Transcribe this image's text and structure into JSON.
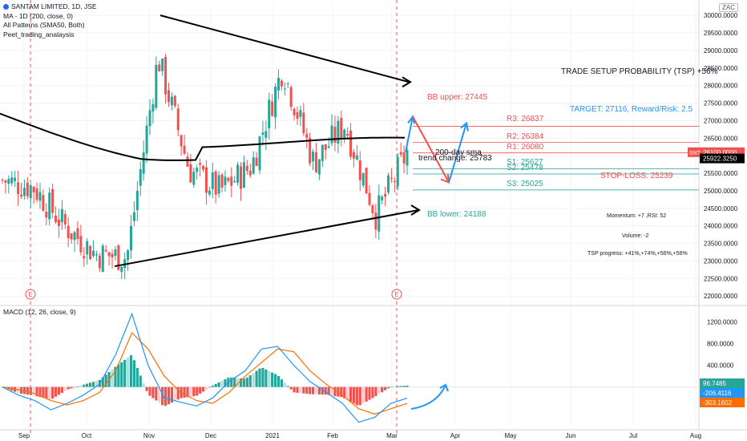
{
  "header": {
    "symbol_line": "SANTAM LIMITED, 1D, JSE",
    "ma_line": "MA - 1D (200, close, 0)",
    "patterns_line": "All Patterns (SMA50, Both)",
    "script_line": "Peet_trading_analaysis",
    "currency": "ZAC"
  },
  "macd_legend": "MACD (12, 26, close, 9)",
  "price_axis": {
    "labels": [
      "30000.0000",
      "29500.0000",
      "29000.0000",
      "28500.0000",
      "28000.0000",
      "27500.0000",
      "27000.0000",
      "26500.0000",
      "26000.0000",
      "25500.0000",
      "25000.0000",
      "24500.0000",
      "24000.0000",
      "23500.0000",
      "23000.0000",
      "22500.0000",
      "22000.0000"
    ],
    "values": [
      30000,
      29500,
      29000,
      28500,
      28000,
      27500,
      27000,
      26500,
      26000,
      25500,
      25000,
      24500,
      24000,
      23500,
      23000,
      22500,
      22000
    ],
    "badges": [
      {
        "text": "26100.0000",
        "value": 26100,
        "color": "#ef5350",
        "tag": "SNT"
      },
      {
        "text": "25922.3250",
        "value": 25922,
        "color": "#000000",
        "tag": ""
      }
    ]
  },
  "macd_axis": {
    "labels": [
      "1200.0000",
      "800.0000",
      "400.0000",
      "0.0000"
    ],
    "values": [
      1200,
      800,
      400,
      0
    ],
    "badges": [
      {
        "text": "96.7485",
        "value": 96.7,
        "color": "#26a69a"
      },
      {
        "text": "-206.4116",
        "value": -206.4,
        "color": "#2196f3"
      },
      {
        "text": "-303.1602",
        "value": -303.2,
        "color": "#ff6d00"
      }
    ]
  },
  "time_axis": {
    "labels": [
      "Sep",
      "Oct",
      "Nov",
      "Dec",
      "2021",
      "Feb",
      "Mar",
      "Apr",
      "May",
      "Jun",
      "Jul",
      "Aug"
    ]
  },
  "annotations": {
    "tsp_title": "TRADE SETUP PROBABILITY (TSP) +56%",
    "bb_upper": "BB upper: 27445",
    "bb_lower": "BB lower: 24188",
    "target": "TARGET: 27116, Reward/Risk: 2.5",
    "r3": "R3: 26837",
    "r2": "R2: 26384",
    "r1": "R1: 26080",
    "sma": "200-day sma",
    "trend": "trend change: 25783",
    "s1": "S1: 25627",
    "s2": "S2: 25478",
    "s3": "S3: 25025",
    "stop": "STOP-LOSS: 25239",
    "momentum": "Momentum: +7 ,RSI: 52",
    "volume": "Volume: -2",
    "tsp_progress": "TSP progress: +41%,+74%,+56%,+56%",
    "earnings_marker": "E"
  },
  "levels": [
    {
      "name": "r3",
      "value": 26837,
      "color": "#ef5350"
    },
    {
      "name": "r2",
      "value": 26384,
      "color": "#ef5350"
    },
    {
      "name": "r1",
      "value": 26080,
      "color": "#ef5350"
    },
    {
      "name": "s1",
      "value": 25627,
      "color": "#26a69a"
    },
    {
      "name": "s2",
      "value": 25478,
      "color": "#26a69a"
    },
    {
      "name": "s3",
      "value": 25025,
      "color": "#26a69a"
    }
  ],
  "colors": {
    "up": "#26a69a",
    "down": "#ef5350",
    "macd": "#2196f3",
    "signal": "#ff6d00",
    "target": "#2196f3",
    "stop": "#ef5350",
    "sma": "#000000"
  },
  "chart_data": [
    {
      "type": "candlestick",
      "title": "SANTAM LIMITED, 1D, JSE",
      "ylim": [
        21800,
        30300
      ],
      "x_range": [
        "Aug",
        "Aug"
      ],
      "price_series": {
        "name": "close",
        "x": [
          "Sep",
          "mid-Sep",
          "Oct",
          "mid-Oct",
          "Nov",
          "mid-Nov",
          "Dec",
          "mid-Dec",
          "2021",
          "mid-Jan",
          "Feb",
          "mid-Feb",
          "Mar",
          "mid-Mar"
        ],
        "values": [
          25300,
          25100,
          24000,
          23200,
          23100,
          28800,
          25600,
          25000,
          25700,
          28500,
          25800,
          26900,
          24300,
          26100
        ]
      },
      "sma200": {
        "name": "MA 200",
        "start": 27200,
        "end": 25900
      },
      "trendlines": {
        "upper_start": 30000,
        "upper_end": 28100,
        "lower_start": 22850,
        "lower_end": 24450
      },
      "earnings_months": [
        "Sep",
        "Mar"
      ]
    },
    {
      "type": "line",
      "title": "MACD (12, 26, close, 9)",
      "ylim": [
        -700,
        1400
      ],
      "series": [
        {
          "name": "MACD",
          "values": [
            0,
            -150,
            -250,
            -420,
            -300,
            -150,
            50,
            600,
            1350,
            400,
            -200,
            -280,
            -350,
            -200,
            100,
            300,
            700,
            750,
            400,
            100,
            -100,
            -300,
            -650,
            -560,
            -300,
            -206
          ]
        },
        {
          "name": "Signal",
          "values": [
            0,
            -50,
            -120,
            -250,
            -330,
            -250,
            -100,
            300,
            1000,
            700,
            200,
            -100,
            -250,
            -300,
            -100,
            200,
            450,
            700,
            650,
            300,
            50,
            -150,
            -400,
            -500,
            -400,
            -303
          ]
        }
      ]
    }
  ]
}
